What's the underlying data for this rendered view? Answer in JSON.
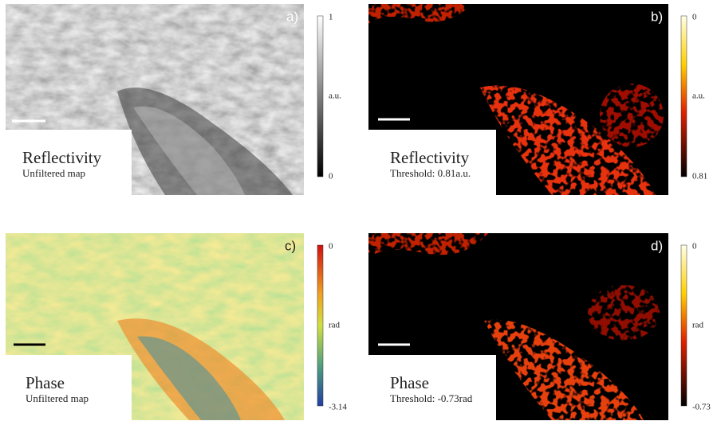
{
  "panels": [
    {
      "label": "a)",
      "title": "Reflectivity",
      "subtitle": "Unfiltered map",
      "colorbar": {
        "top": "1",
        "unit": "a.u.",
        "bottom": "0"
      }
    },
    {
      "label": "b)",
      "title": "Reflectivity",
      "subtitle": "Threshold: 0.81a.u.",
      "colorbar": {
        "top": "0",
        "unit": "a.u.",
        "bottom": "0.81"
      }
    },
    {
      "label": "c)",
      "title": "Phase",
      "subtitle": "Unfiltered map",
      "colorbar": {
        "top": "0",
        "unit": "rad",
        "bottom": "-3.14"
      }
    },
    {
      "label": "d)",
      "title": "Phase",
      "subtitle": "Threshold: -0.73rad",
      "colorbar": {
        "top": "0",
        "unit": "rad",
        "bottom": "-0.73"
      }
    }
  ]
}
